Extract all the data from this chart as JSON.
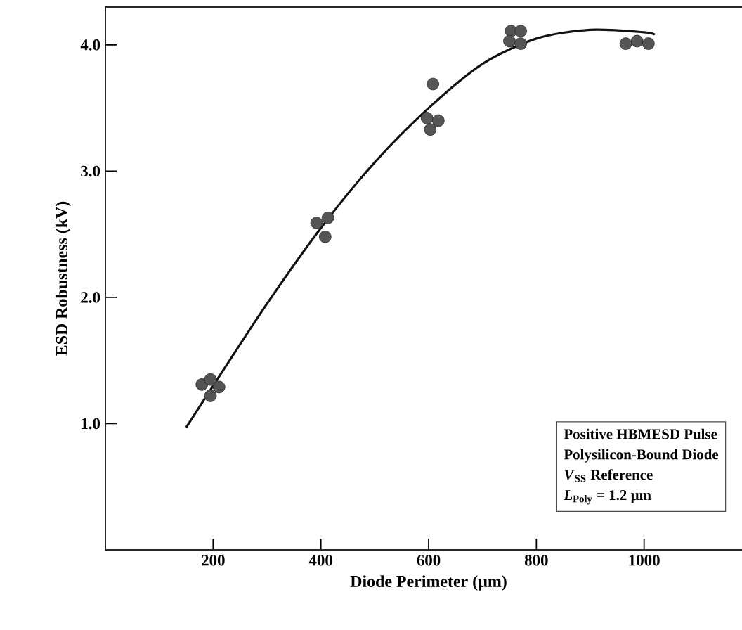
{
  "chart_data": {
    "type": "scatter",
    "xlabel": "Diode Perimeter (µm)",
    "ylabel": "ESD Robustness (kV)",
    "xlim": [
      0,
      1200
    ],
    "ylim": [
      0,
      4.3
    ],
    "xticks": [
      200,
      400,
      600,
      800,
      1000
    ],
    "yticks": [
      {
        "value": 1,
        "label": "1.0"
      },
      {
        "value": 2,
        "label": "2.0"
      },
      {
        "value": 3,
        "label": "3.0"
      },
      {
        "value": 4,
        "label": "4.0"
      }
    ],
    "series": [
      {
        "marker": "circle",
        "color": "#555555",
        "x": [
          179,
          195,
          211,
          195,
          392,
          413,
          408,
          608,
          597,
          618,
          603,
          753,
          771,
          750,
          771,
          966,
          987,
          1008
        ],
        "values": [
          1.31,
          1.35,
          1.29,
          1.22,
          2.59,
          2.63,
          2.48,
          3.69,
          3.42,
          3.4,
          3.33,
          4.11,
          4.11,
          4.03,
          4.01,
          4.01,
          4.03,
          4.01
        ]
      },
      {
        "type": "line",
        "marker": "none",
        "line_style": "solid",
        "color": "#111111",
        "x": [
          150,
          200,
          300,
          400,
          500,
          600,
          700,
          800,
          900,
          1000,
          1020
        ],
        "values": [
          0.97,
          1.3,
          1.95,
          2.55,
          3.07,
          3.5,
          3.85,
          4.05,
          4.12,
          4.1,
          4.08
        ]
      }
    ],
    "annotations": [
      "Positive HBMESD Pulse",
      "Polysilicon-Bound Diode",
      "*V*$_{SS}$ Reference",
      "*L*$_{Poly}$ = 1.2 µm"
    ]
  }
}
